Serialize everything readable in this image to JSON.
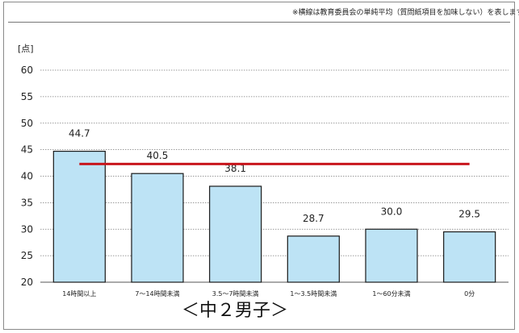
{
  "note": "※横線は教育委員会の単純平均（質問紙項目を加味しない）を表します",
  "caption": "＜中２男子＞",
  "chart_data": {
    "type": "bar",
    "unit_label": "[点]",
    "categories": [
      "14時間以上",
      "7～14時間未満",
      "3.5～7時間未満",
      "1～3.5時間未満",
      "1～60分未満",
      "0分"
    ],
    "values": [
      44.7,
      40.5,
      38.1,
      28.7,
      30.0,
      29.5
    ],
    "value_labels": [
      "44.7",
      "40.5",
      "38.1",
      "28.7",
      "30.0",
      "29.5"
    ],
    "reference_line": 42.3,
    "ylim": [
      20,
      60
    ],
    "yticks": [
      20,
      25,
      30,
      35,
      40,
      45,
      50,
      55,
      60
    ],
    "grid": true,
    "bar_color": "#bde3f5",
    "bar_edge_color": "#1a1a1a",
    "reference_line_color": "#c8161d"
  }
}
